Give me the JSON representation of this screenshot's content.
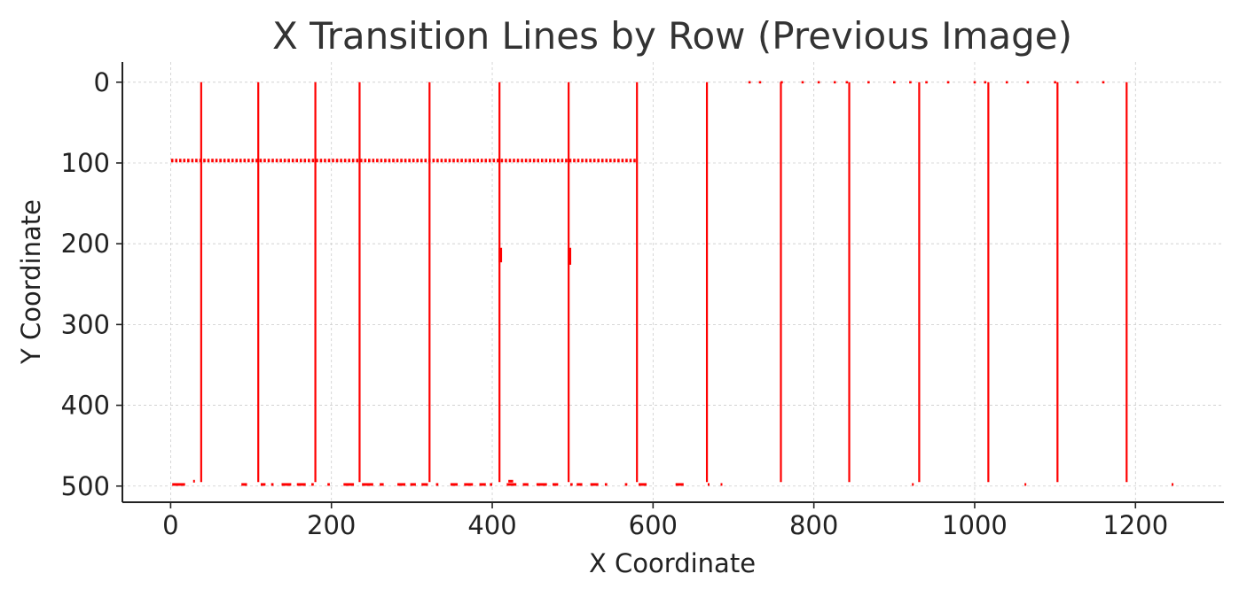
{
  "chart_data": {
    "type": "scatter",
    "title": "X Transition Lines by Row (Previous Image)",
    "xlabel": "X Coordinate",
    "ylabel": "Y Coordinate",
    "xlim": [
      -60,
      1310
    ],
    "ylim": [
      520,
      -25
    ],
    "y_inverted": true,
    "grid": true,
    "x_ticks": [
      0,
      200,
      400,
      600,
      800,
      1000,
      1200
    ],
    "y_ticks": [
      0,
      100,
      200,
      300,
      400,
      500
    ],
    "color": "#ff0000",
    "vertical_lines": [
      {
        "x": 38,
        "y_start": 0,
        "y_end": 495
      },
      {
        "x": 109,
        "y_start": 0,
        "y_end": 495
      },
      {
        "x": 180,
        "y_start": 0,
        "y_end": 495
      },
      {
        "x": 235,
        "y_start": 0,
        "y_end": 495
      },
      {
        "x": 322,
        "y_start": 0,
        "y_end": 495
      },
      {
        "x": 409,
        "y_start": 0,
        "y_end": 495
      },
      {
        "x": 495,
        "y_start": 0,
        "y_end": 495
      },
      {
        "x": 580,
        "y_start": 0,
        "y_end": 495
      },
      {
        "x": 667,
        "y_start": 0,
        "y_end": 495
      },
      {
        "x": 759,
        "y_start": 0,
        "y_end": 495
      },
      {
        "x": 844,
        "y_start": 0,
        "y_end": 495
      },
      {
        "x": 931,
        "y_start": 0,
        "y_end": 495
      },
      {
        "x": 1017,
        "y_start": 0,
        "y_end": 495
      },
      {
        "x": 1103,
        "y_start": 0,
        "y_end": 495
      },
      {
        "x": 1189,
        "y_start": 0,
        "y_end": 495
      }
    ],
    "short_segments": [
      {
        "x": 410,
        "y_start": 205,
        "y_end": 223
      },
      {
        "x": 496,
        "y_start": 205,
        "y_end": 226
      }
    ],
    "horizontal_dotted_row": {
      "y": 97,
      "x_start": 2,
      "x_end": 578,
      "step": 5
    },
    "top_row_points": {
      "y": 0,
      "x": [
        720,
        733,
        760,
        786,
        806,
        826,
        841,
        868,
        900,
        920,
        940,
        967,
        1000,
        1013,
        1040,
        1066,
        1100,
        1128,
        1160
      ]
    },
    "bottom_row_segments": [
      {
        "y": 498,
        "x_start": 2,
        "x_end": 18
      },
      {
        "y": 494,
        "x_start": 28,
        "x_end": 30
      },
      {
        "y": 498,
        "x_start": 88,
        "x_end": 95
      },
      {
        "y": 498,
        "x_start": 112,
        "x_end": 118
      },
      {
        "y": 498,
        "x_start": 125,
        "x_end": 128
      },
      {
        "y": 498,
        "x_start": 138,
        "x_end": 150
      },
      {
        "y": 498,
        "x_start": 157,
        "x_end": 168
      },
      {
        "y": 498,
        "x_start": 175,
        "x_end": 178
      },
      {
        "y": 498,
        "x_start": 195,
        "x_end": 198
      },
      {
        "y": 498,
        "x_start": 215,
        "x_end": 228
      },
      {
        "y": 498,
        "x_start": 238,
        "x_end": 252
      },
      {
        "y": 498,
        "x_start": 260,
        "x_end": 265
      },
      {
        "y": 498,
        "x_start": 282,
        "x_end": 292
      },
      {
        "y": 498,
        "x_start": 298,
        "x_end": 305
      },
      {
        "y": 498,
        "x_start": 312,
        "x_end": 320
      },
      {
        "y": 498,
        "x_start": 330,
        "x_end": 333
      },
      {
        "y": 498,
        "x_start": 348,
        "x_end": 357
      },
      {
        "y": 498,
        "x_start": 365,
        "x_end": 376
      },
      {
        "y": 498,
        "x_start": 384,
        "x_end": 392
      },
      {
        "y": 498,
        "x_start": 397,
        "x_end": 400
      },
      {
        "y": 498,
        "x_start": 418,
        "x_end": 430
      },
      {
        "y": 494,
        "x_start": 420,
        "x_end": 426
      },
      {
        "y": 498,
        "x_start": 438,
        "x_end": 445
      },
      {
        "y": 498,
        "x_start": 455,
        "x_end": 468
      },
      {
        "y": 498,
        "x_start": 475,
        "x_end": 482
      },
      {
        "y": 498,
        "x_start": 497,
        "x_end": 500
      },
      {
        "y": 498,
        "x_start": 505,
        "x_end": 512
      },
      {
        "y": 498,
        "x_start": 522,
        "x_end": 532
      },
      {
        "y": 498,
        "x_start": 540,
        "x_end": 543
      },
      {
        "y": 498,
        "x_start": 565,
        "x_end": 568
      },
      {
        "y": 498,
        "x_start": 582,
        "x_end": 592
      },
      {
        "y": 498,
        "x_start": 628,
        "x_end": 638
      },
      {
        "y": 498,
        "x_start": 668,
        "x_end": 670
      },
      {
        "y": 498,
        "x_start": 684,
        "x_end": 686
      },
      {
        "y": 498,
        "x_start": 922,
        "x_end": 924
      },
      {
        "y": 498,
        "x_start": 1062,
        "x_end": 1064
      },
      {
        "y": 498,
        "x_start": 1245,
        "x_end": 1247
      }
    ]
  }
}
